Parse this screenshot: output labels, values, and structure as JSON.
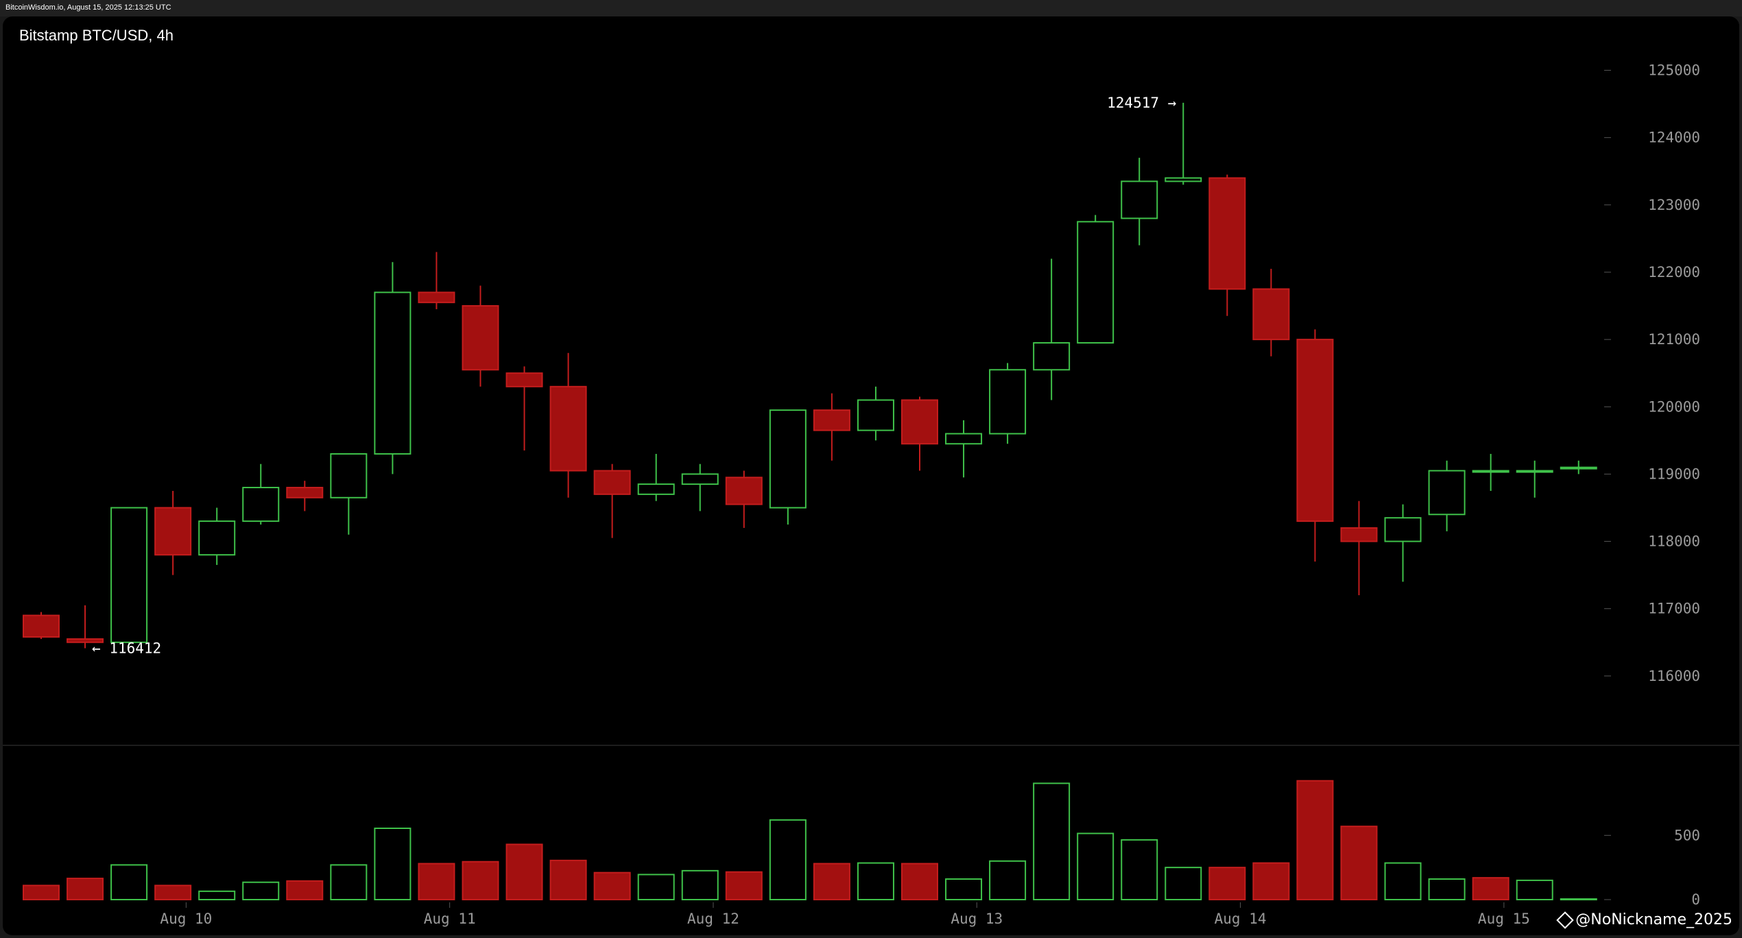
{
  "header": {
    "source_line": "BitcoinWisdom.io, August 15, 2025 12:13:25 UTC"
  },
  "watermark": {
    "icon": "diamond-logo-icon",
    "text": "@NoNickname_2025"
  },
  "colors": {
    "background": "#000000",
    "up": "#3fc24a",
    "down": "#a31010",
    "down_outline": "#c41d1d",
    "axis_text": "#9a9a9a",
    "divider": "#3a3a3a"
  },
  "chart_data": [
    {
      "type": "candlestick",
      "title": "Bitstamp BTC/USD, 4h",
      "ylim": [
        115000,
        125800
      ],
      "y_ticks": [
        116000,
        117000,
        118000,
        119000,
        120000,
        121000,
        122000,
        123000,
        124000,
        125000
      ],
      "x_tick_labels": [
        {
          "label": "Aug 10",
          "index": 3.3
        },
        {
          "label": "Aug 11",
          "index": 9.3
        },
        {
          "label": "Aug 12",
          "index": 15.3
        },
        {
          "label": "Aug 13",
          "index": 21.3
        },
        {
          "label": "Aug 14",
          "index": 27.3
        },
        {
          "label": "Aug 15",
          "index": 33.3
        }
      ],
      "candles": [
        {
          "o": 116900,
          "h": 116950,
          "l": 116550,
          "c": 116580
        },
        {
          "o": 116550,
          "h": 117050,
          "l": 116412,
          "c": 116500
        },
        {
          "o": 116500,
          "h": 118500,
          "l": 116450,
          "c": 118500
        },
        {
          "o": 118500,
          "h": 118750,
          "l": 117500,
          "c": 117800
        },
        {
          "o": 117800,
          "h": 118500,
          "l": 117650,
          "c": 118300
        },
        {
          "o": 118300,
          "h": 119150,
          "l": 118250,
          "c": 118800
        },
        {
          "o": 118800,
          "h": 118900,
          "l": 118450,
          "c": 118650
        },
        {
          "o": 118650,
          "h": 119300,
          "l": 118100,
          "c": 119300
        },
        {
          "o": 119300,
          "h": 122150,
          "l": 119000,
          "c": 121700
        },
        {
          "o": 121700,
          "h": 122300,
          "l": 121450,
          "c": 121550
        },
        {
          "o": 121500,
          "h": 121800,
          "l": 120300,
          "c": 120550
        },
        {
          "o": 120500,
          "h": 120600,
          "l": 119350,
          "c": 120300
        },
        {
          "o": 120300,
          "h": 120800,
          "l": 118650,
          "c": 119050
        },
        {
          "o": 119050,
          "h": 119150,
          "l": 118050,
          "c": 118700
        },
        {
          "o": 118700,
          "h": 119300,
          "l": 118600,
          "c": 118850
        },
        {
          "o": 118850,
          "h": 119150,
          "l": 118450,
          "c": 119000
        },
        {
          "o": 118950,
          "h": 119050,
          "l": 118200,
          "c": 118550
        },
        {
          "o": 118500,
          "h": 119950,
          "l": 118250,
          "c": 119950
        },
        {
          "o": 119950,
          "h": 120200,
          "l": 119200,
          "c": 119650
        },
        {
          "o": 119650,
          "h": 120300,
          "l": 119500,
          "c": 120100
        },
        {
          "o": 120100,
          "h": 120150,
          "l": 119050,
          "c": 119450
        },
        {
          "o": 119450,
          "h": 119800,
          "l": 118950,
          "c": 119600
        },
        {
          "o": 119600,
          "h": 120650,
          "l": 119450,
          "c": 120550
        },
        {
          "o": 120550,
          "h": 122200,
          "l": 120100,
          "c": 120950
        },
        {
          "o": 120950,
          "h": 122850,
          "l": 120950,
          "c": 122750
        },
        {
          "o": 122800,
          "h": 123700,
          "l": 122400,
          "c": 123350
        },
        {
          "o": 123350,
          "h": 124517,
          "l": 123300,
          "c": 123400
        },
        {
          "o": 123400,
          "h": 123450,
          "l": 121350,
          "c": 121750
        },
        {
          "o": 121750,
          "h": 122050,
          "l": 120750,
          "c": 121000
        },
        {
          "o": 121000,
          "h": 121150,
          "l": 117700,
          "c": 118300
        },
        {
          "o": 118200,
          "h": 118600,
          "l": 117200,
          "c": 118000
        },
        {
          "o": 118000,
          "h": 118550,
          "l": 117400,
          "c": 118350
        },
        {
          "o": 118400,
          "h": 119200,
          "l": 118150,
          "c": 119050
        },
        {
          "o": 119050,
          "h": 119300,
          "l": 118750,
          "c": 119050
        },
        {
          "o": 119050,
          "h": 119200,
          "l": 118650,
          "c": 119050
        },
        {
          "o": 119100,
          "h": 119200,
          "l": 119000,
          "c": 119100
        }
      ],
      "annotations": [
        {
          "text": "124517 →",
          "index": 26,
          "value": 124517,
          "side": "left"
        },
        {
          "text": "← 116412",
          "index": 1,
          "value": 116412,
          "side": "right"
        }
      ]
    },
    {
      "type": "bar",
      "title": "",
      "ylim": [
        0,
        950
      ],
      "y_ticks": [
        0,
        500
      ],
      "values": [
        110,
        165,
        270,
        110,
        65,
        135,
        145,
        270,
        555,
        280,
        295,
        430,
        305,
        210,
        195,
        225,
        215,
        620,
        280,
        285,
        280,
        160,
        300,
        905,
        515,
        465,
        250,
        250,
        285,
        925,
        570,
        285,
        160,
        170,
        150,
        5
      ],
      "directions": [
        "down",
        "down",
        "up",
        "down",
        "up",
        "up",
        "down",
        "up",
        "up",
        "down",
        "down",
        "down",
        "down",
        "down",
        "up",
        "up",
        "down",
        "up",
        "down",
        "up",
        "down",
        "up",
        "up",
        "up",
        "up",
        "up",
        "up",
        "down",
        "down",
        "down",
        "down",
        "up",
        "up",
        "down",
        "up",
        "up"
      ]
    }
  ]
}
